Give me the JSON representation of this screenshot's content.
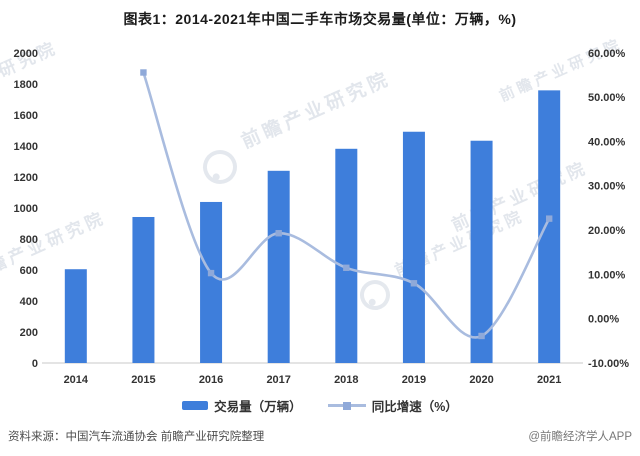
{
  "title": "图表1：2014-2021年中国二手车市场交易量(单位：万辆，%)",
  "chart_data": {
    "type": "bar",
    "subtype": "bar-line combo with dual y-axes, smoothed line",
    "categories": [
      "2014",
      "2015",
      "2016",
      "2017",
      "2018",
      "2019",
      "2020",
      "2021"
    ],
    "series": [
      {
        "name": "交易量（万辆）",
        "type": "bar",
        "axis": "left",
        "values": [
          605,
          942,
          1039,
          1240,
          1382,
          1492,
          1434,
          1759
        ]
      },
      {
        "name": "同比增速（%）",
        "type": "line",
        "axis": "right",
        "smooth": true,
        "values": [
          null,
          55.6,
          10.3,
          19.3,
          11.5,
          8.0,
          -3.9,
          22.6
        ]
      }
    ],
    "left_axis": {
      "min": 0,
      "max": 2000,
      "step": 200,
      "ticks": [
        "0",
        "200",
        "400",
        "600",
        "800",
        "1000",
        "1200",
        "1400",
        "1600",
        "1800",
        "2000"
      ]
    },
    "right_axis": {
      "min": -10,
      "max": 60,
      "step": 10,
      "ticks": [
        "-10.00%",
        "0.00%",
        "10.00%",
        "20.00%",
        "30.00%",
        "40.00%",
        "50.00%",
        "60.00%"
      ]
    },
    "grid": false,
    "legend_position": "bottom",
    "title": "图表1：2014-2021年中国二手车市场交易量(单位：万辆，%)"
  },
  "legend": [
    {
      "label": "交易量（万辆）",
      "swatch": "bar"
    },
    {
      "label": "同比增速（%）",
      "swatch": "line-marker"
    }
  ],
  "footer": {
    "source": "资料来源：中国汽车流通协会 前瞻产业研究院整理",
    "credit": "@前瞻经济学人APP"
  },
  "watermark": {
    "text": "前瞻产业研究院",
    "logo": "qianzhan-logo"
  },
  "colors": {
    "bar": "#3E7EDB",
    "line": "#A9BCDF",
    "marker": "#8FA9D9",
    "axis_line": "#C9C9C9",
    "tick_text": "#333333",
    "title_text": "#1B1B1B",
    "watermark": "#CBD3DE"
  }
}
